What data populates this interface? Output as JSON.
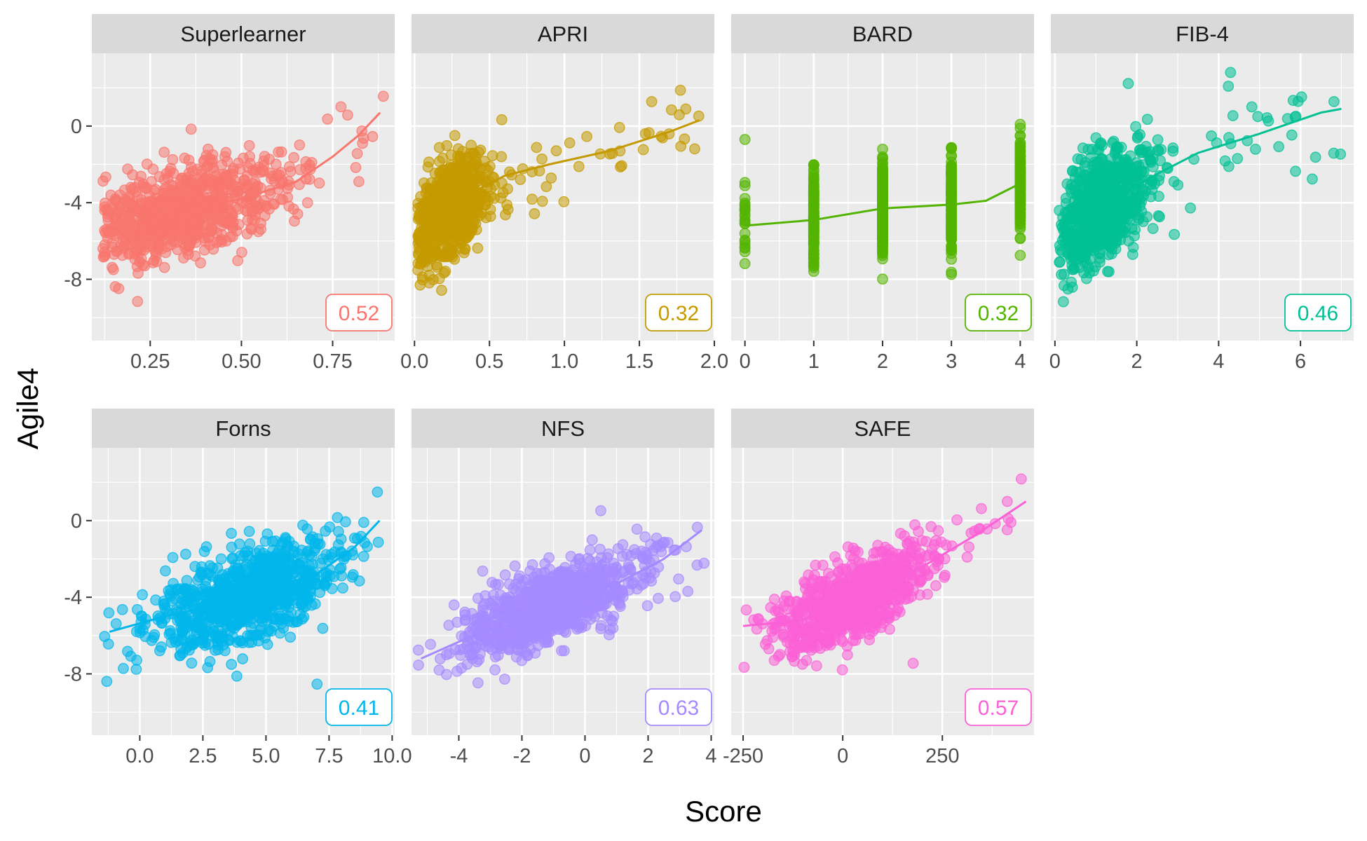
{
  "chart_data": {
    "type": "scatter",
    "xlabel": "Score",
    "ylabel": "Agile4",
    "y_ticks": [
      "0",
      "-4",
      "-8"
    ],
    "y_tick_values": [
      0,
      -4,
      -8
    ],
    "ylim": [
      -11.2,
      3.8
    ],
    "facets": [
      {
        "name": "Superlearner",
        "color": "#F8766D",
        "corr_label": "0.52",
        "xlim": [
          0.09,
          0.92
        ],
        "x_ticks": [
          0.25,
          0.5,
          0.75
        ],
        "x_tick_labels": [
          "0.25",
          "0.50",
          "0.75"
        ],
        "x_range": [
          0.12,
          0.9
        ],
        "x_center": 0.32,
        "x_spread": 0.14,
        "slope": 7.5,
        "noise": 1.1,
        "trend": [
          [
            0.12,
            -5.5
          ],
          [
            0.3,
            -4.6
          ],
          [
            0.5,
            -3.8
          ],
          [
            0.65,
            -2.9
          ],
          [
            0.75,
            -1.6
          ],
          [
            0.82,
            -0.5
          ],
          [
            0.88,
            0.7
          ]
        ]
      },
      {
        "name": "APRI",
        "color": "#C49A00",
        "corr_label": "0.32",
        "xlim": [
          -0.02,
          2.0
        ],
        "x_ticks": [
          0.0,
          0.5,
          1.0,
          1.5,
          2.0
        ],
        "x_tick_labels": [
          "0.0",
          "0.5",
          "1.0",
          "1.5",
          "2.0"
        ],
        "x_range": [
          0.02,
          1.9
        ],
        "x_center": 0.22,
        "x_spread": 0.12,
        "slope": 5.5,
        "noise": 1.2,
        "trend": [
          [
            0.05,
            -5.3
          ],
          [
            0.2,
            -4.4
          ],
          [
            0.4,
            -3.4
          ],
          [
            0.6,
            -2.6
          ],
          [
            0.9,
            -2.0
          ],
          [
            1.3,
            -1.3
          ],
          [
            1.7,
            -0.3
          ],
          [
            1.9,
            0.3
          ]
        ]
      },
      {
        "name": "BARD",
        "color": "#53B400",
        "corr_label": "0.32",
        "xlim": [
          -0.2,
          4.2
        ],
        "x_ticks": [
          0,
          1,
          2,
          3,
          4
        ],
        "x_tick_labels": [
          "0",
          "1",
          "2",
          "3",
          "4"
        ],
        "x_range": [
          0,
          4
        ],
        "discrete": true,
        "noise": 1.2,
        "level_means": [
          -5.0,
          -4.9,
          -4.3,
          -4.1,
          -3.0
        ],
        "trend": [
          [
            0,
            -5.2
          ],
          [
            1,
            -4.9
          ],
          [
            2,
            -4.3
          ],
          [
            3,
            -4.1
          ],
          [
            3.5,
            -3.9
          ],
          [
            4,
            -3.0
          ]
        ]
      },
      {
        "name": "FIB-4",
        "color": "#00C094",
        "corr_label": "0.46",
        "xlim": [
          -0.1,
          7.3
        ],
        "x_ticks": [
          0,
          2,
          4,
          6
        ],
        "x_tick_labels": [
          "0",
          "2",
          "4",
          "6"
        ],
        "x_range": [
          0.1,
          7.0
        ],
        "x_center": 1.1,
        "x_spread": 0.55,
        "slope": 1.3,
        "noise": 1.3,
        "trend": [
          [
            0.1,
            -5.8
          ],
          [
            0.8,
            -4.7
          ],
          [
            1.5,
            -3.7
          ],
          [
            2.5,
            -2.5
          ],
          [
            3.5,
            -1.4
          ],
          [
            5,
            -0.4
          ],
          [
            6.5,
            0.7
          ],
          [
            7.0,
            0.9
          ]
        ]
      },
      {
        "name": "Forns",
        "color": "#00B6EB",
        "corr_label": "0.41",
        "xlim": [
          -1.9,
          10.1
        ],
        "x_ticks": [
          0,
          2.5,
          5,
          7.5,
          10
        ],
        "x_tick_labels": [
          "0.0",
          "2.5",
          "5.0",
          "7.5",
          "10.0"
        ],
        "x_range": [
          -1.5,
          9.6
        ],
        "x_center": 4.4,
        "x_spread": 1.7,
        "slope": 0.5,
        "noise": 1.2,
        "trend": [
          [
            -1.2,
            -5.8
          ],
          [
            1,
            -5.0
          ],
          [
            3,
            -4.4
          ],
          [
            5,
            -3.6
          ],
          [
            7,
            -2.8
          ],
          [
            8.5,
            -1.4
          ],
          [
            9.5,
            0.0
          ]
        ]
      },
      {
        "name": "NFS",
        "color": "#A58AFF",
        "corr_label": "0.63",
        "xlim": [
          -5.5,
          4.1
        ],
        "x_ticks": [
          -4,
          -2,
          0,
          2,
          4
        ],
        "x_tick_labels": [
          "-4",
          "-2",
          "0",
          "2",
          "4"
        ],
        "x_range": [
          -5.3,
          3.8
        ],
        "x_center": -1.2,
        "x_spread": 1.35,
        "slope": 0.7,
        "noise": 0.95,
        "trend": [
          [
            -5.2,
            -7.2
          ],
          [
            -3,
            -5.6
          ],
          [
            -1,
            -4.3
          ],
          [
            1,
            -3.3
          ],
          [
            2.5,
            -2.0
          ],
          [
            3.7,
            -0.5
          ]
        ]
      },
      {
        "name": "SAFE",
        "color": "#FB61D7",
        "corr_label": "0.57",
        "xlim": [
          -280,
          480
        ],
        "x_ticks": [
          -250,
          0,
          250
        ],
        "x_tick_labels": [
          "-250",
          "0",
          "250"
        ],
        "x_range": [
          -260,
          460
        ],
        "x_center": 30,
        "x_spread": 95,
        "slope": 0.0095,
        "noise": 1.0,
        "trend": [
          [
            -250,
            -5.5
          ],
          [
            -100,
            -5.2
          ],
          [
            50,
            -4.0
          ],
          [
            200,
            -2.4
          ],
          [
            330,
            -0.8
          ],
          [
            460,
            1.0
          ]
        ]
      }
    ]
  }
}
